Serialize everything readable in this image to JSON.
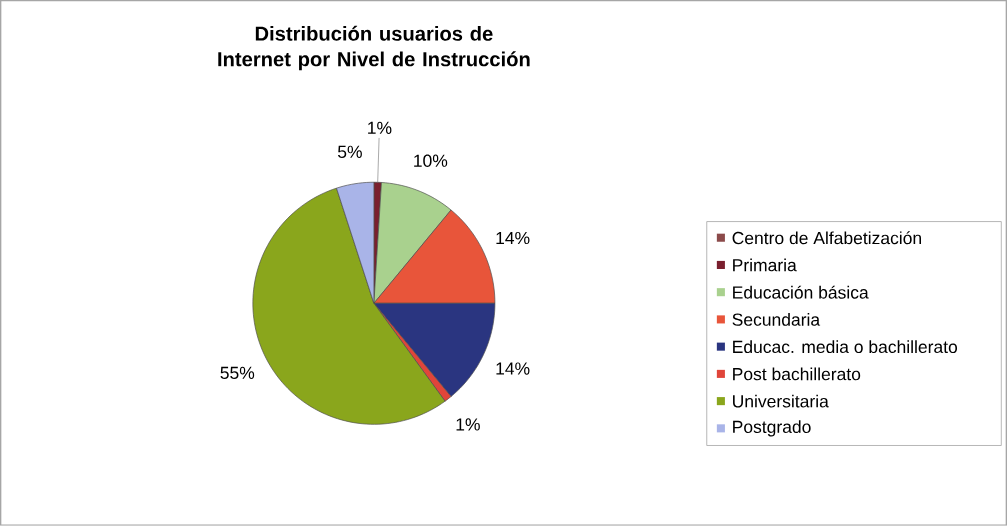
{
  "chart_data": {
    "type": "pie",
    "title": "Distribución usuarios de Internet por Nivel de Instrucción",
    "categories": [
      "Centro de Alfabetización",
      "Primaria",
      "Educación básica",
      "Secundaria",
      "Educac. media o bachillerato",
      "Post bachillerato",
      "Universitaria",
      "Postgrado"
    ],
    "values": [
      0,
      1,
      10,
      14,
      14,
      1,
      55,
      5
    ],
    "value_labels": [
      null,
      "1%",
      "10%",
      "14%",
      "14%",
      "1%",
      "55%",
      "5%"
    ],
    "colors": [
      "#8b4a4a",
      "#7a1f2e",
      "#a9d18e",
      "#e8553a",
      "#2a3580",
      "#e0453a",
      "#8aa61c",
      "#a9b4e8"
    ],
    "legend": "right"
  }
}
